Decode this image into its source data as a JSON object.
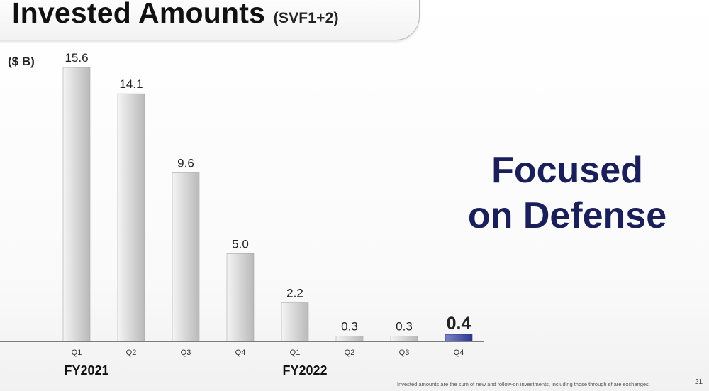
{
  "slide": {
    "title": "Invested Amounts",
    "subtitle": "(SVF1+2)",
    "unit": "($ B)",
    "headline_line1": "Focused",
    "headline_line2": "on Defense",
    "footnote": "Invested amounts are the sum of new and follow-on investments, including those through share exchanges.",
    "page_number": "21"
  },
  "colors": {
    "bar_gray_light": "#f4f4f4",
    "bar_gray_dark": "#b9b9b9",
    "bar_highlight_light": "#7d83c8",
    "bar_highlight_dark": "#2d3690",
    "headline": "#1a1f5a"
  },
  "chart_data": {
    "type": "bar",
    "title": "Invested Amounts",
    "subtitle": "(SVF1+2)",
    "ylabel": "($ B)",
    "categories": [
      "Q1",
      "Q2",
      "Q3",
      "Q4",
      "Q1",
      "Q2",
      "Q3",
      "Q4"
    ],
    "groups": [
      {
        "label": "FY2021",
        "start": 0,
        "count": 4
      },
      {
        "label": "FY2022",
        "start": 4,
        "count": 4
      }
    ],
    "values": [
      15.6,
      14.1,
      9.6,
      5.0,
      2.2,
      0.3,
      0.3,
      0.4
    ],
    "data_labels": [
      "15.6",
      "14.1",
      "9.6",
      "5.0",
      "2.2",
      "0.3",
      "0.3",
      "0.4"
    ],
    "highlight_index": 7,
    "ylim": [
      0,
      15.6
    ],
    "grid": false,
    "legend": "none"
  }
}
